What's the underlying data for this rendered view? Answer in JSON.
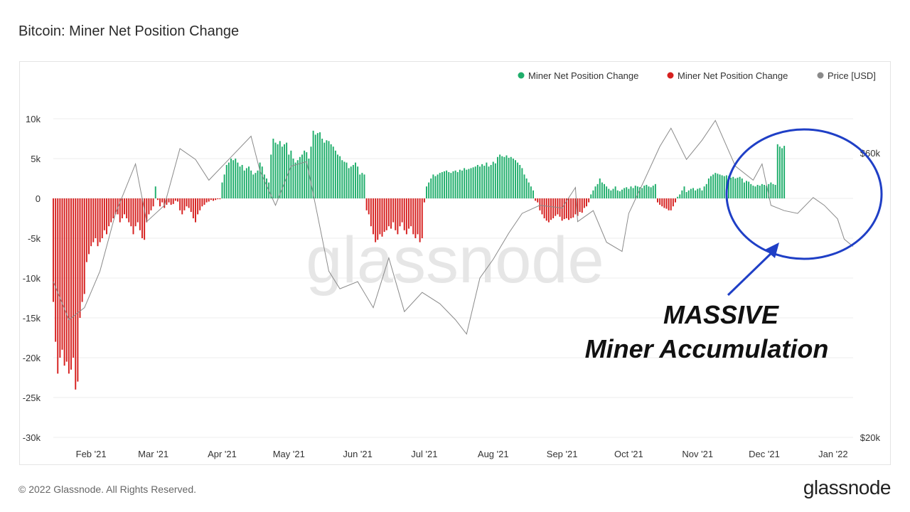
{
  "page": {
    "title": "Bitcoin: Miner Net Position Change",
    "footer_copyright": "© 2022 Glassnode. All Rights Reserved.",
    "footer_logo": "glassnode",
    "watermark": "glassnode"
  },
  "annotation": {
    "line1": "MASSIVE",
    "line2": "Miner Accumulation"
  },
  "colors": {
    "positive": "#1fae6b",
    "negative": "#d6201f",
    "price": "#8a8a8a",
    "grid": "#ececec",
    "circle": "#1f3fc6"
  },
  "chart_data": {
    "type": "bar",
    "title": "Bitcoin: Miner Net Position Change",
    "legend": [
      {
        "label": "Miner Net Position Change",
        "color": "#1fae6b"
      },
      {
        "label": "Miner Net Position Change",
        "color": "#d6201f"
      },
      {
        "label": "Price [USD]",
        "color": "#8a8a8a"
      }
    ],
    "legend_position": "top-right",
    "grid": true,
    "y_left": {
      "ylim": [
        -30000,
        12000
      ],
      "ticks": [
        10000,
        5000,
        0,
        -5000,
        -10000,
        -15000,
        -20000,
        -25000,
        -30000
      ],
      "tick_labels": [
        "10k",
        "5k",
        "0",
        "-5k",
        "-10k",
        "-15k",
        "-20k",
        "-25k",
        "-30k"
      ]
    },
    "y_right": {
      "scale": "log",
      "ticks": [
        60000,
        20000
      ],
      "tick_labels": [
        "$60k",
        "$20k"
      ]
    },
    "x_axis": {
      "start": "2021-01-15",
      "end": "2022-01-10",
      "ticks": [
        "2021-02-01",
        "2021-03-01",
        "2021-04-01",
        "2021-05-01",
        "2021-06-01",
        "2021-07-01",
        "2021-08-01",
        "2021-09-01",
        "2021-10-01",
        "2021-11-01",
        "2021-12-01",
        "2022-01-01"
      ],
      "tick_labels": [
        "Feb '21",
        "Mar '21",
        "Apr '21",
        "May '21",
        "Jun '21",
        "Jul '21",
        "Aug '21",
        "Sep '21",
        "Oct '21",
        "Nov '21",
        "Dec '21",
        "Jan '22"
      ]
    },
    "net_position_series": {
      "name": "Miner Net Position Change",
      "start_date": "2021-01-15",
      "step_days": 1,
      "values": [
        -13000,
        -18000,
        -22000,
        -20000,
        -19000,
        -21000,
        -20500,
        -22000,
        -21500,
        -20000,
        -24000,
        -23000,
        -15000,
        -13000,
        -12000,
        -8000,
        -7000,
        -6000,
        -5500,
        -5000,
        -6000,
        -5500,
        -5000,
        -4000,
        -4500,
        -3500,
        -3000,
        -2500,
        -2000,
        -2000,
        -3000,
        -2500,
        -2000,
        -2500,
        -3000,
        -3500,
        -4500,
        -3500,
        -3000,
        -4000,
        -5000,
        -5200,
        -3000,
        -2000,
        -1500,
        -1000,
        1500,
        -200,
        -1000,
        -500,
        -1200,
        -800,
        -500,
        -800,
        -700,
        -300,
        -400,
        -1500,
        -2000,
        -1500,
        -1000,
        -1200,
        -1700,
        -2500,
        -3000,
        -2000,
        -1500,
        -1000,
        -800,
        -500,
        -400,
        -200,
        -300,
        -200,
        -100,
        -100,
        2000,
        3000,
        4200,
        4500,
        5000,
        4800,
        5000,
        4500,
        4000,
        4200,
        3500,
        3800,
        4000,
        3500,
        3000,
        3200,
        3500,
        4500,
        4000,
        3000,
        2500,
        2000,
        5500,
        7500,
        7000,
        6800,
        7200,
        6500,
        6800,
        7000,
        5500,
        6000,
        5000,
        4500,
        4800,
        5200,
        5500,
        6000,
        5800,
        5000,
        6500,
        8500,
        8000,
        8200,
        8300,
        7500,
        7000,
        7300,
        7200,
        6800,
        6500,
        6000,
        5500,
        5300,
        4800,
        4600,
        4500,
        3800,
        4000,
        4200,
        4500,
        4000,
        3000,
        3200,
        3000,
        -1500,
        -2000,
        -3500,
        -4500,
        -5500,
        -5200,
        -4500,
        -4800,
        -4200,
        -4000,
        -3500,
        -3800,
        -3000,
        -4000,
        -4500,
        -3500,
        -3000,
        -4000,
        -4500,
        -3800,
        -3500,
        -4500,
        -5000,
        -4500,
        -5500,
        -5000,
        -500,
        1500,
        2000,
        2500,
        3000,
        2800,
        3000,
        3200,
        3300,
        3400,
        3500,
        3300,
        3200,
        3400,
        3500,
        3300,
        3600,
        3500,
        3800,
        3600,
        3700,
        3800,
        3900,
        4000,
        4200,
        4000,
        4300,
        4100,
        4500,
        4000,
        4200,
        4600,
        4400,
        5200,
        5500,
        5300,
        5200,
        5400,
        5100,
        5200,
        5000,
        4800,
        4500,
        4200,
        3800,
        3000,
        2500,
        2000,
        1500,
        1000,
        -300,
        -500,
        -1500,
        -2000,
        -2500,
        -2800,
        -3000,
        -2700,
        -2500,
        -2200,
        -2000,
        -2300,
        -2800,
        -2600,
        -2500,
        -2700,
        -2500,
        -2400,
        -2000,
        -2200,
        -1700,
        -1800,
        -1200,
        -1000,
        -500,
        500,
        1000,
        1500,
        1800,
        2500,
        2000,
        1800,
        1500,
        1200,
        1000,
        1200,
        1500,
        1000,
        900,
        1100,
        1300,
        1400,
        1200,
        1500,
        1300,
        1600,
        1500,
        1400,
        1300,
        1600,
        1700,
        1500,
        1400,
        1600,
        1800,
        -500,
        -800,
        -1000,
        -1200,
        -1300,
        -1500,
        -1500,
        -1000,
        -500,
        200,
        500,
        1000,
        1500,
        800,
        1000,
        1200,
        1300,
        1000,
        1200,
        1300,
        1000,
        1500,
        1800,
        2500,
        2800,
        3000,
        3200,
        3100,
        3000,
        2900,
        2800,
        2900,
        2800,
        2600,
        2700,
        2500,
        2600,
        2700,
        2500,
        2000,
        2200,
        2100,
        1800,
        1600,
        1500,
        1700,
        1600,
        1800,
        1700,
        1600,
        1800,
        2000,
        1800,
        1700,
        6800,
        6500,
        6300,
        6600
      ]
    },
    "price_series": {
      "name": "Price [USD]",
      "unit": "USD",
      "points": [
        [
          "2021-01-15",
          36500
        ],
        [
          "2021-01-22",
          31500
        ],
        [
          "2021-01-29",
          33000
        ],
        [
          "2021-02-05",
          38000
        ],
        [
          "2021-02-12",
          47500
        ],
        [
          "2021-02-21",
          57500
        ],
        [
          "2021-02-26",
          46000
        ],
        [
          "2021-03-06",
          49000
        ],
        [
          "2021-03-13",
          61000
        ],
        [
          "2021-03-20",
          58500
        ],
        [
          "2021-03-26",
          54000
        ],
        [
          "2021-04-03",
          58000
        ],
        [
          "2021-04-14",
          64000
        ],
        [
          "2021-04-18",
          56000
        ],
        [
          "2021-04-25",
          49000
        ],
        [
          "2021-05-02",
          57000
        ],
        [
          "2021-05-09",
          58000
        ],
        [
          "2021-05-13",
          49000
        ],
        [
          "2021-05-19",
          38000
        ],
        [
          "2021-05-24",
          35500
        ],
        [
          "2021-06-01",
          36500
        ],
        [
          "2021-06-08",
          33000
        ],
        [
          "2021-06-15",
          40000
        ],
        [
          "2021-06-22",
          32500
        ],
        [
          "2021-06-30",
          35000
        ],
        [
          "2021-07-08",
          33500
        ],
        [
          "2021-07-15",
          31500
        ],
        [
          "2021-07-20",
          29800
        ],
        [
          "2021-07-26",
          37000
        ],
        [
          "2021-08-01",
          39800
        ],
        [
          "2021-08-08",
          44000
        ],
        [
          "2021-08-14",
          47500
        ],
        [
          "2021-08-22",
          49000
        ],
        [
          "2021-09-01",
          48500
        ],
        [
          "2021-09-07",
          52500
        ],
        [
          "2021-09-08",
          46000
        ],
        [
          "2021-09-15",
          48000
        ],
        [
          "2021-09-21",
          42500
        ],
        [
          "2021-09-28",
          41000
        ],
        [
          "2021-10-01",
          47500
        ],
        [
          "2021-10-08",
          54000
        ],
        [
          "2021-10-15",
          61500
        ],
        [
          "2021-10-20",
          66000
        ],
        [
          "2021-10-27",
          58500
        ],
        [
          "2021-11-03",
          63000
        ],
        [
          "2021-11-09",
          68000
        ],
        [
          "2021-11-18",
          57000
        ],
        [
          "2021-11-26",
          54000
        ],
        [
          "2021-11-30",
          57500
        ],
        [
          "2021-12-04",
          49000
        ],
        [
          "2021-12-10",
          48000
        ],
        [
          "2021-12-16",
          47500
        ],
        [
          "2021-12-23",
          50500
        ],
        [
          "2021-12-28",
          49000
        ],
        [
          "2022-01-03",
          46500
        ],
        [
          "2022-01-06",
          43000
        ],
        [
          "2022-01-10",
          41800
        ]
      ]
    }
  }
}
